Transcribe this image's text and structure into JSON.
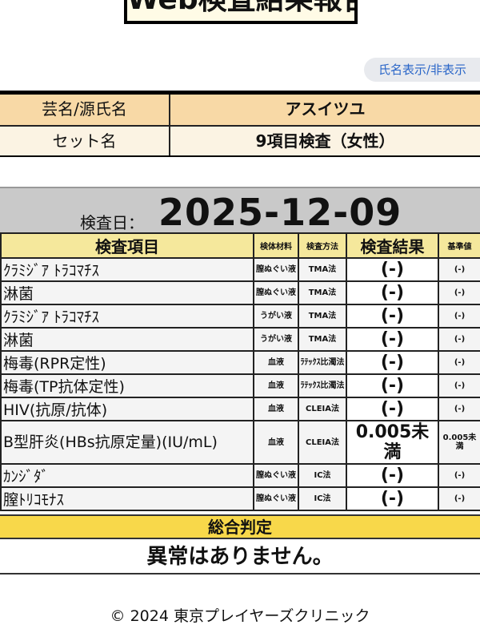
{
  "header": {
    "title": "Web検査結果報告",
    "toggle_label": "氏名表示/非表示"
  },
  "info": {
    "name_label": "芸名/源氏名",
    "name_value": "アスイツユ",
    "set_label": "セット名",
    "set_value": "9項目検査（女性）"
  },
  "exam_date": {
    "label": "検査日：",
    "value": "2025-12-09"
  },
  "results_table": {
    "headers": [
      "検査項目",
      "検体材料",
      "検査方法",
      "検査結果",
      "基準値"
    ],
    "rows": [
      {
        "item": "ｸﾗﾐｼﾞｱ ﾄﾗｺﾏﾁｽ",
        "material": "膣ぬぐい液",
        "method": "TMA法",
        "result": "(-)",
        "reference": "(-)"
      },
      {
        "item": "淋菌",
        "material": "膣ぬぐい液",
        "method": "TMA法",
        "result": "(-)",
        "reference": "(-)"
      },
      {
        "item": "ｸﾗﾐｼﾞｱ ﾄﾗｺﾏﾁｽ",
        "material": "うがい液",
        "method": "TMA法",
        "result": "(-)",
        "reference": "(-)"
      },
      {
        "item": "淋菌",
        "material": "うがい液",
        "method": "TMA法",
        "result": "(-)",
        "reference": "(-)"
      },
      {
        "item": "梅毒(RPR定性)",
        "material": "血液",
        "method": "ﾗﾃｯｸｽ比濁法",
        "result": "(-)",
        "reference": "(-)"
      },
      {
        "item": "梅毒(TP抗体定性)",
        "material": "血液",
        "method": "ﾗﾃｯｸｽ比濁法",
        "result": "(-)",
        "reference": "(-)"
      },
      {
        "item": "HIV(抗原/抗体)",
        "material": "血液",
        "method": "CLEIA法",
        "result": "(-)",
        "reference": "(-)"
      },
      {
        "item": "B型肝炎(HBs抗原定量)(IU/mL)",
        "material": "血液",
        "method": "CLEIA法",
        "result": "0.005未満",
        "reference": "0.005未満"
      },
      {
        "item": "ｶﾝｼﾞﾀﾞ",
        "material": "膣ぬぐい液",
        "method": "IC法",
        "result": "(-)",
        "reference": "(-)"
      },
      {
        "item": "膣ﾄﾘｺﾓﾅｽ",
        "material": "膣ぬぐい液",
        "method": "IC法",
        "result": "(-)",
        "reference": "(-)"
      }
    ]
  },
  "judgement": {
    "label": "総合判定",
    "value": "異常はありません。"
  },
  "footer": {
    "copyright": "© 2024 東京プレイヤーズクリニック"
  },
  "colors": {
    "info_row1": "#f8d9a6",
    "info_row2": "#fbf3e3",
    "table_header": "#f5e89c",
    "judgement_band": "#f8d84a",
    "date_band": "#c9c9c9",
    "toggle_text": "#2a66c8"
  }
}
